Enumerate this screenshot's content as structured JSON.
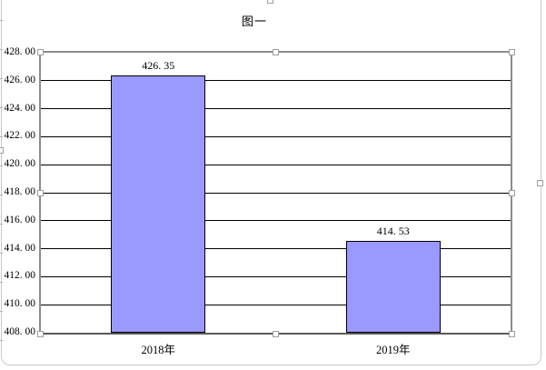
{
  "chart": {
    "title": "图一"
  },
  "chart_data": {
    "type": "bar",
    "title": "图一",
    "categories": [
      "2018年",
      "2019年"
    ],
    "values": [
      426.35,
      414.53
    ],
    "value_labels": [
      "426. 35",
      "414. 53"
    ],
    "xlabel": "",
    "ylabel": "",
    "ylim": [
      408,
      428
    ],
    "ytick_step": 2,
    "ytick_labels": [
      "428. 00",
      "426. 00",
      "424. 00",
      "422. 00",
      "420. 00",
      "418. 00",
      "416. 00",
      "414. 00",
      "412. 00",
      "410. 00",
      "408. 00"
    ],
    "grid": true,
    "legend": false,
    "bar_color": "#9999FF",
    "bar_border_color": "#000000",
    "gridline_color": "#000000",
    "plot_border_color": "#8c8c8c"
  },
  "selection": {
    "state": "plot-area-selected",
    "handle_fill": "#ffffff",
    "handle_border": "#9e9e9e"
  }
}
